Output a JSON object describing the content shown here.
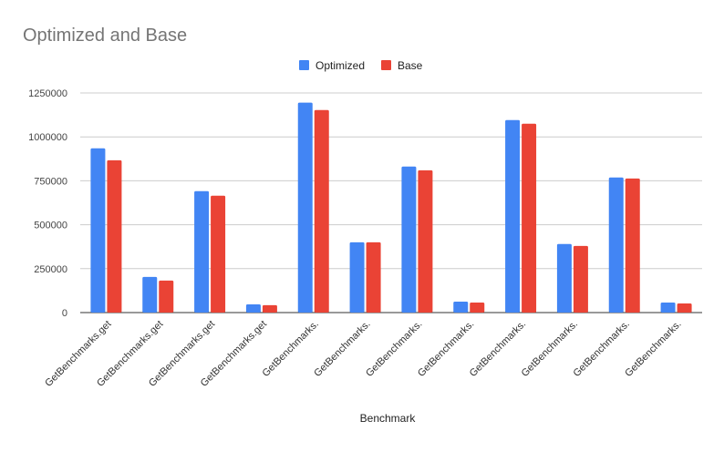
{
  "chart_data": {
    "type": "bar",
    "title": "Optimized and Base",
    "xlabel": "Benchmark",
    "ylabel": "",
    "ylim": [
      0,
      1250000
    ],
    "yticks": [
      "0",
      "250000",
      "500000",
      "750000",
      "1000000",
      "1250000"
    ],
    "grid": true,
    "legend_position": "top",
    "categories": [
      "GetBenchmarks.get",
      "GetBenchmarks.get",
      "GetBenchmarks.get",
      "GetBenchmarks.get",
      "GetBenchmarks.",
      "GetBenchmarks.",
      "GetBenchmarks.",
      "GetBenchmarks.",
      "GetBenchmarks.",
      "GetBenchmarks.",
      "GetBenchmarks.",
      "GetBenchmarks."
    ],
    "series": [
      {
        "name": "Optimized",
        "color": "#4285f4",
        "values": [
          935000,
          203000,
          691000,
          47000,
          1195000,
          400000,
          831000,
          62000,
          1096000,
          390000,
          769000,
          57000
        ]
      },
      {
        "name": "Base",
        "color": "#ea4335",
        "values": [
          867000,
          182000,
          665000,
          42000,
          1153000,
          400000,
          810000,
          57000,
          1075000,
          379000,
          763000,
          52000
        ]
      }
    ]
  }
}
